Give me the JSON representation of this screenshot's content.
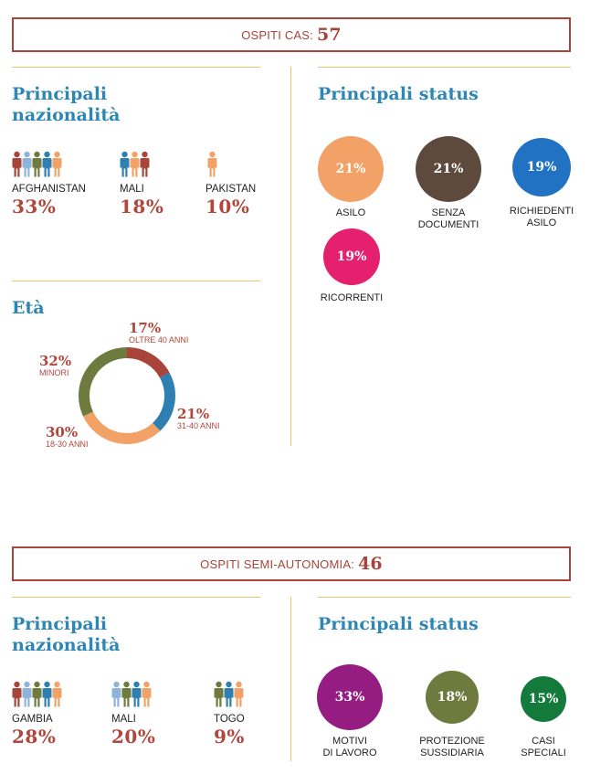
{
  "section1": {
    "banner_label": "OSPITI CAS:",
    "banner_value": "57",
    "nat_heading": "Principali\nnazionalità",
    "nationalities": [
      {
        "label": "AFGHANISTAN",
        "pct": "33%"
      },
      {
        "label": "MALI",
        "pct": "18%"
      },
      {
        "label": "PAKISTAN",
        "pct": "10%"
      }
    ],
    "status_heading": "Principali status",
    "statuses": [
      {
        "pct": "21%",
        "label": "ASILO",
        "color": "#f2a266"
      },
      {
        "pct": "21%",
        "label": "SENZA\nDOCUMENTI",
        "color": "#5e4a3c"
      },
      {
        "pct": "19%",
        "label": "RICHIEDENTI\nASILO",
        "color": "#2172c3"
      },
      {
        "pct": "19%",
        "label": "RICORRENTI",
        "color": "#e5206f"
      }
    ],
    "age_heading": "Età",
    "age": [
      {
        "pct": "17%",
        "label": "OLTRE 40 ANNI",
        "value": 17,
        "color": "#a8443a"
      },
      {
        "pct": "21%",
        "label": "31-40 ANNI",
        "value": 21,
        "color": "#2f7fb0"
      },
      {
        "pct": "30%",
        "label": "18-30 ANNI",
        "value": 30,
        "color": "#f2a266"
      },
      {
        "pct": "32%",
        "label": "MINORI",
        "value": 32,
        "color": "#6e7a3e"
      }
    ]
  },
  "section2": {
    "banner_label": "OSPITI SEMI-AUTONOMIA:",
    "banner_value": "46",
    "nat_heading": "Principali\nnazionalità",
    "nationalities": [
      {
        "label": "GAMBIA",
        "pct": "28%"
      },
      {
        "label": "MALI",
        "pct": "20%"
      },
      {
        "label": "TOGO",
        "pct": "9%"
      }
    ],
    "status_heading": "Principali status",
    "statuses": [
      {
        "pct": "33%",
        "label": "MOTIVI\nDI LAVORO",
        "color": "#951c80"
      },
      {
        "pct": "18%",
        "label": "PROTEZIONE\nSUSSIDIARIA",
        "color": "#6e7a3e"
      },
      {
        "pct": "15%",
        "label": "CASI\nSPECIALI",
        "color": "#137a3c"
      }
    ]
  },
  "person_colors": [
    "#a8443a",
    "#8fb3d9",
    "#6e7a3e",
    "#2f7fb0",
    "#f2a266"
  ]
}
